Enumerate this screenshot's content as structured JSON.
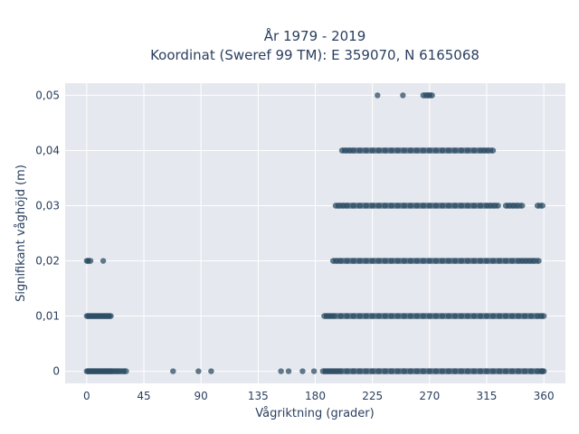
{
  "chart_data": {
    "type": "scatter",
    "title_line1": "År 1979 - 2019",
    "title_line2": "Koordinat (Sweref 99 TM): E 359070, N 6165068",
    "xlabel": "Vågriktning (grader)",
    "ylabel": "Signifikant våghöjd (m)",
    "xlim": [
      -17,
      377
    ],
    "ylim": [
      -0.0022,
      0.0522
    ],
    "x_ticks": [
      0,
      45,
      90,
      135,
      180,
      225,
      270,
      315,
      360
    ],
    "x_tick_labels": [
      "0",
      "45",
      "90",
      "135",
      "180",
      "225",
      "270",
      "315",
      "360"
    ],
    "y_ticks": [
      0,
      0.01,
      0.02,
      0.03,
      0.04,
      0.05
    ],
    "y_tick_labels": [
      "0",
      "0,01",
      "0,02",
      "0,03",
      "0,04",
      "0,05"
    ],
    "grid": true,
    "marker_color": "#2f4f66",
    "plot_bg": "#e5e8ef",
    "series": [
      {
        "x": [
          0,
          1,
          2,
          3,
          4,
          5,
          6,
          7,
          8,
          9,
          10,
          11,
          12,
          13,
          14,
          15,
          16,
          17,
          18,
          19,
          20,
          22,
          24,
          26,
          29,
          31,
          68,
          88,
          98,
          153,
          159,
          170,
          179,
          186,
          188,
          190,
          192,
          194,
          196,
          198,
          200,
          205,
          210,
          215,
          220,
          225,
          230,
          235,
          240,
          245,
          250,
          255,
          260,
          265,
          270,
          275,
          280,
          285,
          290,
          295,
          300,
          305,
          310,
          315,
          320,
          325,
          330,
          335,
          340,
          345,
          350,
          355,
          358,
          359,
          360
        ],
        "y": [
          0,
          0,
          0,
          0,
          0,
          0,
          0,
          0,
          0,
          0,
          0,
          0,
          0,
          0,
          0,
          0,
          0,
          0,
          0,
          0,
          0,
          0,
          0,
          0,
          0,
          0,
          0,
          0,
          0,
          0,
          0,
          0,
          0,
          0,
          0,
          0,
          0,
          0,
          0,
          0,
          0,
          0,
          0,
          0,
          0,
          0,
          0,
          0,
          0,
          0,
          0,
          0,
          0,
          0,
          0,
          0,
          0,
          0,
          0,
          0,
          0,
          0,
          0,
          0,
          0,
          0,
          0,
          0,
          0,
          0,
          0,
          0,
          0,
          0,
          0
        ]
      },
      {
        "x": [
          0,
          1,
          2,
          3,
          4,
          5,
          6,
          7,
          8,
          9,
          10,
          11,
          12,
          13,
          14,
          15,
          16,
          17,
          18,
          19,
          187,
          189,
          191,
          193,
          195,
          200,
          205,
          210,
          215,
          220,
          225,
          230,
          235,
          240,
          245,
          250,
          255,
          260,
          265,
          270,
          275,
          280,
          285,
          290,
          295,
          300,
          305,
          310,
          315,
          320,
          325,
          330,
          335,
          340,
          345,
          350,
          355,
          358,
          360
        ],
        "y": [
          0.01,
          0.01,
          0.01,
          0.01,
          0.01,
          0.01,
          0.01,
          0.01,
          0.01,
          0.01,
          0.01,
          0.01,
          0.01,
          0.01,
          0.01,
          0.01,
          0.01,
          0.01,
          0.01,
          0.01,
          0.01,
          0.01,
          0.01,
          0.01,
          0.01,
          0.01,
          0.01,
          0.01,
          0.01,
          0.01,
          0.01,
          0.01,
          0.01,
          0.01,
          0.01,
          0.01,
          0.01,
          0.01,
          0.01,
          0.01,
          0.01,
          0.01,
          0.01,
          0.01,
          0.01,
          0.01,
          0.01,
          0.01,
          0.01,
          0.01,
          0.01,
          0.01,
          0.01,
          0.01,
          0.01,
          0.01,
          0.01,
          0.01,
          0.01
        ]
      },
      {
        "x": [
          0,
          1,
          3,
          13,
          194,
          197,
          200,
          205,
          210,
          215,
          220,
          225,
          230,
          235,
          240,
          245,
          250,
          255,
          260,
          265,
          270,
          275,
          280,
          285,
          290,
          295,
          300,
          305,
          310,
          315,
          320,
          325,
          330,
          335,
          340,
          343,
          346,
          349,
          352,
          356
        ],
        "y": [
          0.02,
          0.02,
          0.02,
          0.02,
          0.02,
          0.02,
          0.02,
          0.02,
          0.02,
          0.02,
          0.02,
          0.02,
          0.02,
          0.02,
          0.02,
          0.02,
          0.02,
          0.02,
          0.02,
          0.02,
          0.02,
          0.02,
          0.02,
          0.02,
          0.02,
          0.02,
          0.02,
          0.02,
          0.02,
          0.02,
          0.02,
          0.02,
          0.02,
          0.02,
          0.02,
          0.02,
          0.02,
          0.02,
          0.02,
          0.02
        ]
      },
      {
        "x": [
          196,
          199,
          202,
          205,
          210,
          215,
          220,
          225,
          230,
          235,
          240,
          245,
          250,
          255,
          260,
          265,
          270,
          275,
          280,
          285,
          290,
          295,
          300,
          305,
          310,
          315,
          318,
          321,
          324,
          330,
          333,
          336,
          339,
          343,
          355,
          359
        ],
        "y": [
          0.03,
          0.03,
          0.03,
          0.03,
          0.03,
          0.03,
          0.03,
          0.03,
          0.03,
          0.03,
          0.03,
          0.03,
          0.03,
          0.03,
          0.03,
          0.03,
          0.03,
          0.03,
          0.03,
          0.03,
          0.03,
          0.03,
          0.03,
          0.03,
          0.03,
          0.03,
          0.03,
          0.03,
          0.03,
          0.03,
          0.03,
          0.03,
          0.03,
          0.03,
          0.03,
          0.03
        ]
      },
      {
        "x": [
          201,
          204,
          207,
          210,
          215,
          220,
          225,
          230,
          235,
          240,
          245,
          250,
          255,
          260,
          265,
          270,
          275,
          280,
          285,
          290,
          295,
          300,
          305,
          310,
          313,
          316,
          320
        ],
        "y": [
          0.04,
          0.04,
          0.04,
          0.04,
          0.04,
          0.04,
          0.04,
          0.04,
          0.04,
          0.04,
          0.04,
          0.04,
          0.04,
          0.04,
          0.04,
          0.04,
          0.04,
          0.04,
          0.04,
          0.04,
          0.04,
          0.04,
          0.04,
          0.04,
          0.04,
          0.04,
          0.04
        ]
      },
      {
        "x": [
          229,
          249,
          265,
          268,
          270,
          272
        ],
        "y": [
          0.05,
          0.05,
          0.05,
          0.05,
          0.05,
          0.05
        ]
      }
    ]
  }
}
